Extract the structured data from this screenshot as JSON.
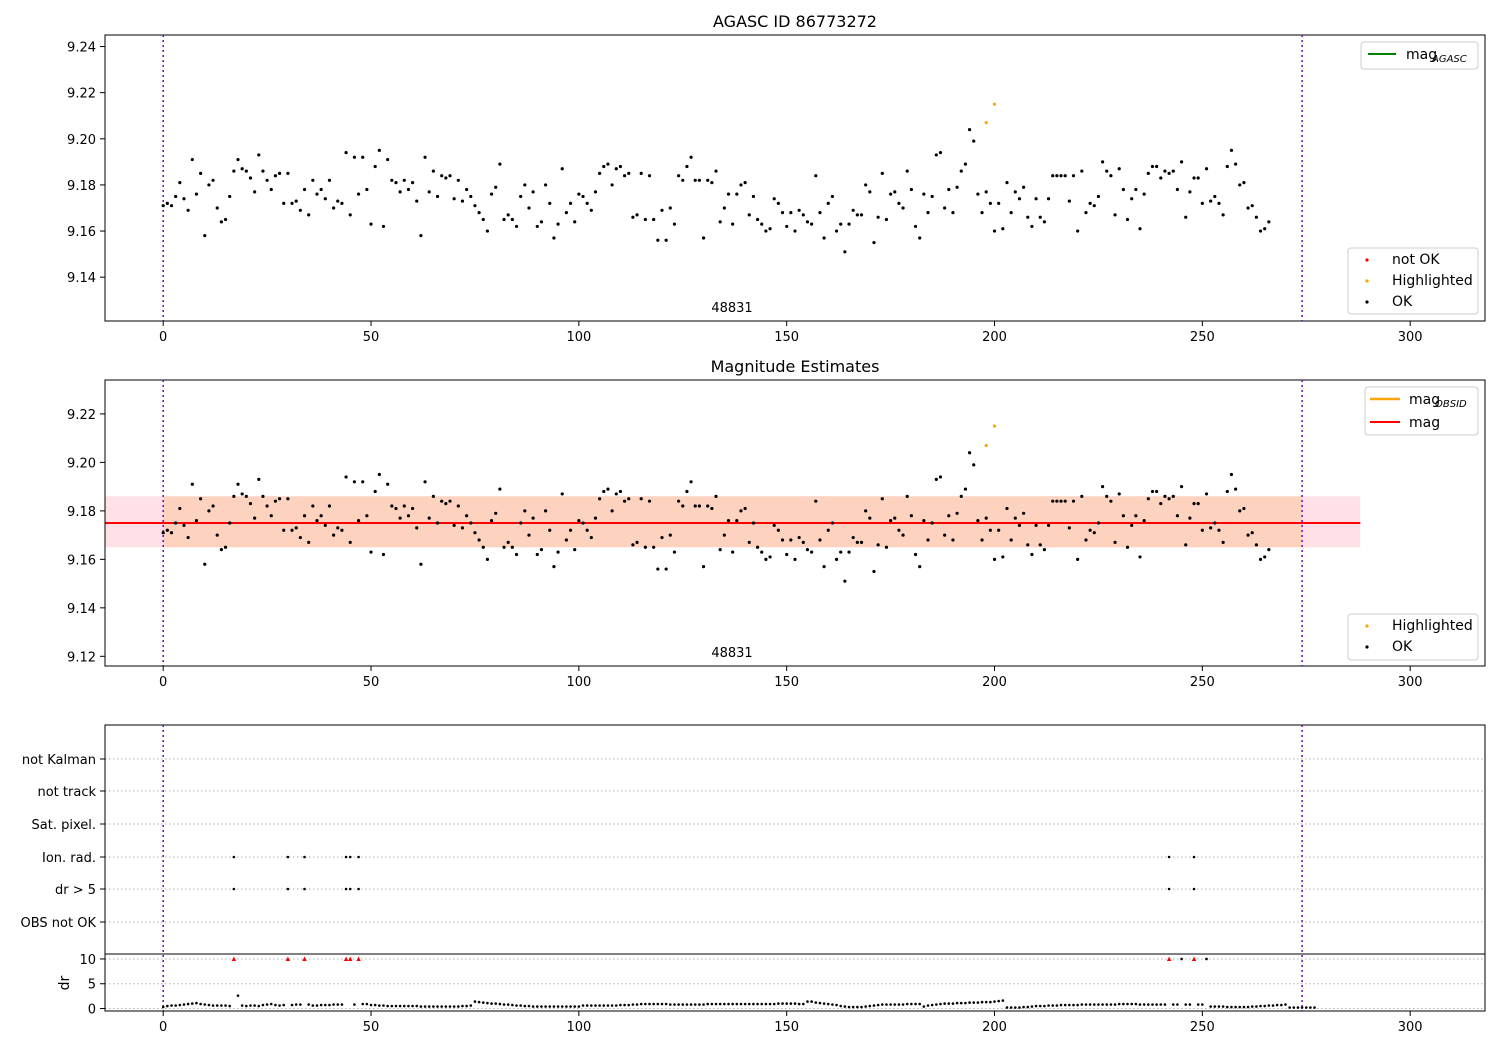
{
  "chart_data": [
    {
      "type": "scatter",
      "title": "AGASC ID 86773272",
      "xlim": [
        -14,
        318
      ],
      "ylim": [
        9.121,
        9.245
      ],
      "xticks": [
        0,
        50,
        100,
        150,
        200,
        250,
        300
      ],
      "yticks": [
        9.14,
        9.16,
        9.18,
        9.2,
        9.22,
        9.24
      ],
      "ytick_labels": [
        "9.14",
        "9.16",
        "9.18",
        "9.20",
        "9.22",
        "9.24"
      ],
      "obsid_label": "48831",
      "obs_boundaries": [
        0,
        274
      ],
      "legends": [
        {
          "location": "upper-right",
          "entries": [
            {
              "label": "mag",
              "sub": "AGASC",
              "kind": "line",
              "color": "#008000"
            }
          ]
        },
        {
          "location": "lower-right",
          "entries": [
            {
              "label": "not OK",
              "kind": "dot",
              "color": "#ff0000"
            },
            {
              "label": "Highlighted",
              "kind": "dot",
              "color": "#ffa500"
            },
            {
              "label": "OK",
              "kind": "dot",
              "color": "#000000"
            }
          ]
        }
      ],
      "highlighted": [
        {
          "x": 198,
          "y": 9.207
        },
        {
          "x": 200,
          "y": 9.215
        }
      ],
      "ok_mags": [
        9.171,
        9.172,
        9.171,
        9.175,
        9.181,
        9.174,
        9.169,
        9.191,
        9.176,
        9.185,
        9.158,
        9.18,
        9.182,
        9.17,
        9.164,
        9.165,
        9.175,
        9.186,
        9.191,
        9.187,
        9.186,
        9.183,
        9.177,
        9.193,
        9.186,
        9.182,
        9.178,
        9.184,
        9.185,
        9.172,
        9.185,
        9.172,
        9.173,
        9.169,
        9.178,
        9.167,
        9.182,
        9.176,
        9.178,
        9.174,
        9.182,
        9.17,
        9.173,
        9.172,
        9.194,
        9.167,
        9.192,
        9.176,
        9.192,
        9.178,
        9.163,
        9.188,
        9.195,
        9.162,
        9.191,
        9.182,
        9.181,
        9.177,
        9.182,
        9.178,
        9.181,
        9.173,
        9.158,
        9.192,
        9.177,
        9.186,
        9.175,
        9.184,
        9.183,
        9.184,
        9.174,
        9.182,
        9.173,
        9.178,
        9.175,
        9.171,
        9.168,
        9.165,
        9.16,
        9.176,
        9.179,
        9.189,
        9.165,
        9.167,
        9.165,
        9.162,
        9.175,
        9.18,
        9.17,
        9.177,
        9.162,
        9.164,
        9.18,
        9.172,
        9.157,
        9.163,
        9.187,
        9.168,
        9.172,
        9.164,
        9.176,
        9.175,
        9.172,
        9.169,
        9.177,
        9.185,
        9.188,
        9.189,
        9.18,
        9.187,
        9.188,
        9.184,
        9.185,
        9.166,
        9.167,
        9.185,
        9.165,
        9.184,
        9.165,
        9.156,
        9.169,
        9.156,
        9.17,
        9.163,
        9.184,
        9.182,
        9.188,
        9.192,
        9.182,
        9.182,
        9.157,
        9.182,
        9.181,
        9.186,
        9.164,
        9.17,
        9.176,
        9.163,
        9.176,
        9.18,
        9.181,
        9.167,
        9.175,
        9.165,
        9.163,
        9.16,
        9.161,
        9.174,
        9.172,
        9.168,
        9.162,
        9.168,
        9.16,
        9.169,
        9.167,
        9.164,
        9.163,
        9.184,
        9.168,
        9.157,
        9.172,
        9.175,
        9.16,
        9.163,
        9.151,
        9.163,
        9.169,
        9.167,
        9.167,
        9.18,
        9.177,
        9.155,
        9.166,
        9.185,
        9.165,
        9.176,
        9.177,
        9.172,
        9.17,
        9.186,
        9.178,
        9.162,
        9.157,
        9.176,
        9.168,
        9.175,
        9.193,
        9.194,
        9.17,
        9.178,
        9.168,
        9.179,
        9.186,
        9.189,
        9.204,
        9.199,
        9.176,
        9.168,
        9.177,
        9.172,
        9.16,
        9.172,
        9.161,
        9.181,
        9.168,
        9.177,
        9.174,
        9.179,
        9.166,
        9.162,
        9.174,
        9.166,
        9.164,
        9.174,
        9.184,
        9.184,
        9.184,
        9.184,
        9.173,
        9.184,
        9.16,
        9.186,
        9.168,
        9.172,
        9.171,
        9.175,
        9.19,
        9.186,
        9.184,
        9.167,
        9.187,
        9.178,
        9.165,
        9.174,
        9.178,
        9.161,
        9.176,
        9.185,
        9.188,
        9.188,
        9.183,
        9.186,
        9.185,
        9.186,
        9.178,
        9.19,
        9.166,
        9.177,
        9.183,
        9.183,
        9.172,
        9.187,
        9.173,
        9.175,
        9.172,
        9.167,
        9.188,
        9.195,
        9.189,
        9.18,
        9.181,
        9.17,
        9.171,
        9.166,
        9.16,
        9.161,
        9.164
      ]
    },
    {
      "type": "scatter",
      "title": "Magnitude Estimates",
      "xlim": [
        -14,
        318
      ],
      "ylim": [
        9.116,
        9.234
      ],
      "xticks": [
        0,
        50,
        100,
        150,
        200,
        250,
        300
      ],
      "yticks": [
        9.12,
        9.14,
        9.16,
        9.18,
        9.2,
        9.22
      ],
      "ytick_labels": [
        "9.12",
        "9.14",
        "9.16",
        "9.18",
        "9.20",
        "9.22"
      ],
      "obsid_label": "48831",
      "obs_boundaries": [
        0,
        274
      ],
      "mag": {
        "value": 9.175,
        "band_low": 9.165,
        "band_high": 9.186,
        "x_end": 288,
        "color": "#ff0000",
        "band_color": "#ffe0e6"
      },
      "mag_obsid": {
        "value": 9.175,
        "band_low": 9.165,
        "band_high": 9.186,
        "x_start": 0,
        "x_end": 274,
        "color": "#ffa500",
        "band_color": "#fdd3bf"
      },
      "legends": [
        {
          "location": "upper-right",
          "entries": [
            {
              "label": "mag",
              "sub": "OBSID",
              "kind": "line",
              "color": "#ffa500"
            },
            {
              "label": "mag",
              "sub": "",
              "kind": "line",
              "color": "#ff0000"
            }
          ]
        },
        {
          "location": "lower-right",
          "entries": [
            {
              "label": "Highlighted",
              "kind": "dot",
              "color": "#ffa500"
            },
            {
              "label": "OK",
              "kind": "dot",
              "color": "#000000"
            }
          ]
        }
      ],
      "note": "same points as panel 1"
    },
    {
      "type": "scatter",
      "title": "",
      "xlim": [
        -14,
        318
      ],
      "xticks": [
        0,
        50,
        100,
        150,
        200,
        250,
        300
      ],
      "obs_boundaries": [
        0,
        274
      ],
      "flag_rows": [
        "not Kalman",
        "not track",
        "Sat. pixel.",
        "Ion. rad.",
        "dr > 5",
        "OBS not OK"
      ],
      "flags": {
        "Ion. rad.": [
          17,
          30,
          34,
          44,
          45,
          47,
          242,
          248
        ],
        "dr > 5": [
          17,
          30,
          34,
          44,
          45,
          47,
          242,
          248
        ]
      },
      "dr": {
        "ylabel": "dr",
        "ylim": [
          -0.5,
          11
        ],
        "yticks": [
          0,
          5,
          10
        ],
        "ytick_labels": [
          "0",
          "5",
          "10"
        ],
        "clipped_x": [
          17,
          30,
          34,
          44,
          45,
          47,
          242,
          248
        ],
        "clip_color": "#ff0000",
        "values": [
          0.3,
          0.5,
          0.6,
          0.6,
          0.7,
          0.8,
          0.9,
          1.0,
          1.1,
          0.9,
          0.8,
          0.7,
          0.6,
          0.6,
          0.6,
          0.6,
          0.5,
          10,
          2.6,
          0.6,
          0.5,
          0.6,
          0.6,
          0.5,
          0.7,
          0.8,
          0.9,
          0.7,
          0.6,
          0.7,
          10,
          0.7,
          0.8,
          0.8,
          10,
          0.8,
          0.6,
          0.6,
          0.7,
          0.7,
          0.7,
          0.8,
          0.8,
          0.8,
          10,
          10,
          0.8,
          10,
          0.9,
          0.9,
          0.7,
          0.7,
          0.6,
          0.6,
          0.5,
          0.5,
          0.5,
          0.5,
          0.5,
          0.5,
          0.5,
          0.5,
          0.4,
          0.4,
          0.4,
          0.4,
          0.4,
          0.4,
          0.4,
          0.4,
          0.4,
          0.4,
          0.5,
          0.5,
          0.6,
          1.4,
          1.3,
          1.2,
          1.1,
          1.0,
          1.0,
          0.9,
          0.8,
          0.8,
          0.7,
          0.6,
          0.6,
          0.5,
          0.5,
          0.4,
          0.4,
          0.4,
          0.4,
          0.4,
          0.4,
          0.4,
          0.4,
          0.4,
          0.4,
          0.4,
          0.4,
          0.6,
          0.6,
          0.6,
          0.6,
          0.6,
          0.6,
          0.6,
          0.6,
          0.6,
          0.7,
          0.7,
          0.7,
          0.8,
          0.8,
          0.9,
          0.9,
          0.9,
          0.9,
          0.9,
          0.9,
          0.9,
          0.8,
          0.8,
          0.8,
          0.8,
          0.8,
          0.8,
          0.8,
          0.8,
          0.8,
          0.9,
          0.9,
          0.9,
          0.9,
          0.9,
          0.9,
          0.9,
          0.9,
          0.9,
          0.9,
          0.9,
          0.9,
          0.9,
          0.9,
          0.9,
          0.9,
          0.9,
          1.0,
          1.0,
          1.0,
          1.0,
          1.0,
          0.9,
          0.9,
          1.4,
          1.4,
          1.2,
          1.1,
          1.0,
          0.9,
          0.8,
          0.7,
          0.5,
          0.4,
          0.3,
          0.3,
          0.3,
          0.3,
          0.4,
          0.5,
          0.6,
          0.7,
          0.8,
          0.8,
          0.8,
          0.8,
          0.8,
          0.8,
          0.9,
          0.9,
          0.9,
          0.9,
          0.4,
          0.6,
          0.7,
          0.8,
          0.9,
          1.0,
          1.0,
          1.0,
          1.1,
          1.1,
          1.1,
          1.2,
          1.2,
          1.2,
          1.3,
          1.3,
          1.3,
          1.4,
          1.5,
          1.6,
          0.2,
          0.2,
          0.2,
          0.2,
          0.3,
          0.3,
          0.4,
          0.5,
          0.5,
          0.5,
          0.6,
          0.6,
          0.6,
          0.7,
          0.7,
          0.7,
          0.7,
          0.7,
          0.8,
          0.8,
          0.8,
          0.8,
          0.8,
          0.8,
          0.8,
          0.8,
          0.8,
          0.9,
          0.9,
          0.9,
          0.9,
          0.9,
          0.8,
          0.8,
          0.8,
          0.8,
          0.8,
          0.8,
          0.8,
          0.8,
          0.8,
          0.8,
          10,
          0.8,
          0.8,
          0.8,
          0.8,
          0.8,
          10,
          0.4,
          0.4,
          0.4,
          0.4,
          0.3,
          0.3,
          0.3,
          0.3,
          0.3,
          0.3,
          0.4,
          0.4,
          0.5,
          0.5,
          0.6,
          0.6,
          0.7,
          0.7,
          0.8,
          0.2,
          0.2,
          0.2,
          0.2,
          0.2,
          0.2,
          0.2
        ]
      }
    }
  ]
}
